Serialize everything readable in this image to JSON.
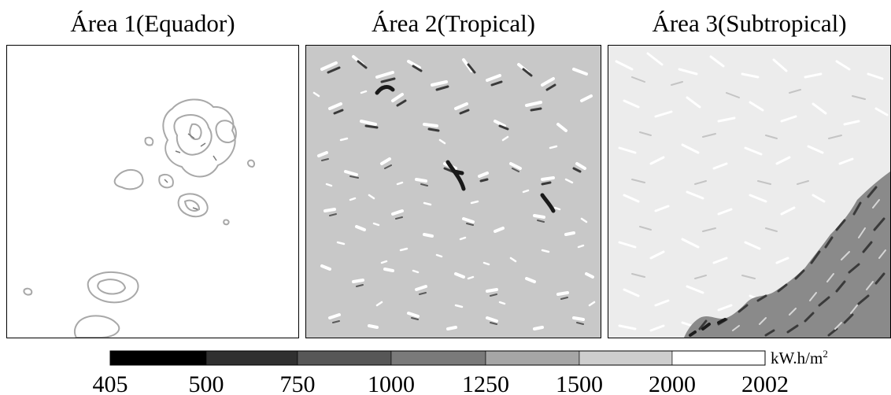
{
  "panels": [
    {
      "title": "Área 1(Equador)",
      "base_color": "#ffffff"
    },
    {
      "title": "Área 2(Tropical)",
      "base_color": "#c8c8c8"
    },
    {
      "title": "Área 3(Subtropical)",
      "base_color": "#ececec"
    }
  ],
  "legend": {
    "unit": "kW.h/m",
    "unit_sup": "2",
    "ticks": [
      "405",
      "500",
      "750",
      "1000",
      "1250",
      "1500",
      "2000",
      "2002"
    ],
    "colors": [
      "#000000",
      "#303030",
      "#575757",
      "#7a7a7a",
      "#a6a6a6",
      "#cecece",
      "#ffffff"
    ]
  }
}
